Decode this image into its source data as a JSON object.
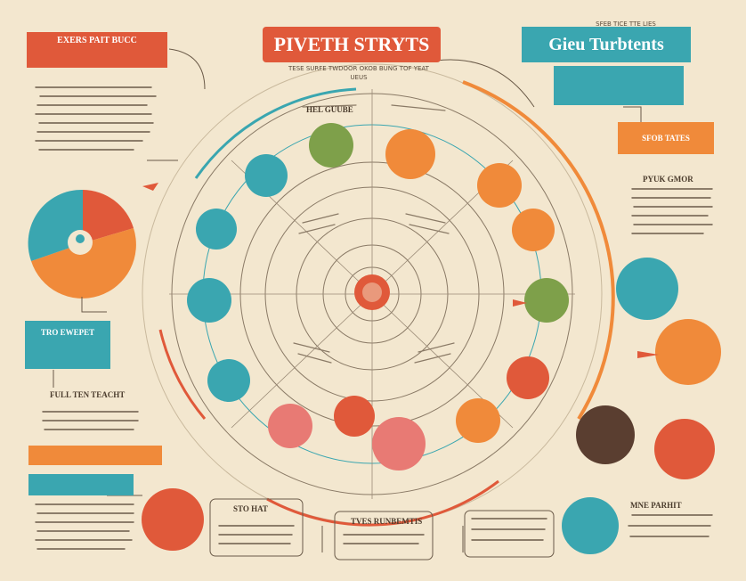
{
  "header": {
    "main_title": "PIVETH STRYTS",
    "main_subtitle": "TESE SURFE TWDOOR OKOB BUNG TOF YEAT UEUS",
    "right_title": "Gieu Turbtents",
    "right_small": "SFEB TICE TTE LIES",
    "left_banner": "EXERS PAIT BUCC"
  },
  "labels": {
    "top_arc": "HEL GUUBE",
    "teal_tag": "TRO EWEPET",
    "orange_tag": "SFOB TATES",
    "bottom_box_a": "STO HAT",
    "bottom_box_b": "TVES RUNBEMTIS",
    "bottom_box_c": "MNE PARHIT",
    "left_note": "FULL TEN TEACHT",
    "right_note": "PYUK GMOR"
  },
  "colors": {
    "red": "#e0593a",
    "teal": "#3aa6b0",
    "orange": "#f08a3a",
    "green": "#7ea04a",
    "brown": "#5a3e30",
    "pink": "#e87a74",
    "paper": "#f3e7cf"
  }
}
